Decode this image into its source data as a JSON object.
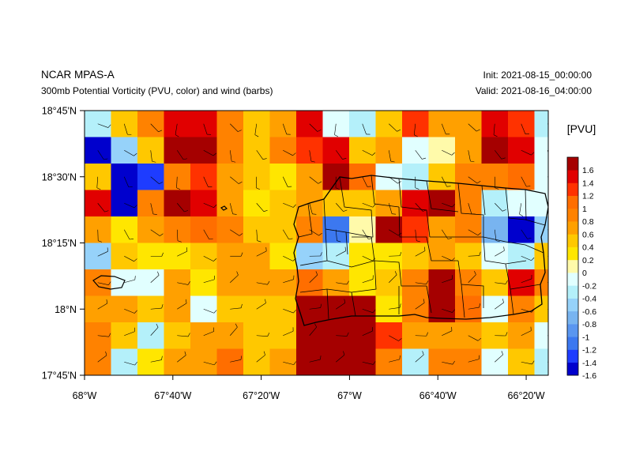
{
  "header": {
    "title": "NCAR MPAS-A",
    "subtitle": "300mb Potential Vorticity (PVU, color) and wind (barbs)",
    "init": "Init: 2021-08-15_00:00:00",
    "valid": "Valid: 2021-08-16_04:00:00"
  },
  "map": {
    "lon_range": [
      -68.0,
      -66.25
    ],
    "lat_range": [
      17.75,
      18.75
    ],
    "x_ticks": [
      {
        "lon": -68.0,
        "label": "68°W"
      },
      {
        "lon": -67.6667,
        "label": "67°40'W"
      },
      {
        "lon": -67.3333,
        "label": "67°20'W"
      },
      {
        "lon": -67.0,
        "label": "67°W"
      },
      {
        "lon": -66.6667,
        "label": "66°40'W"
      },
      {
        "lon": -66.3333,
        "label": "66°20'W"
      }
    ],
    "y_ticks": [
      {
        "lat": 18.75,
        "label": "18°45'N"
      },
      {
        "lat": 18.5,
        "label": "18°30'N"
      },
      {
        "lat": 18.25,
        "label": "18°15'N"
      },
      {
        "lat": 18.0,
        "label": "18°N"
      },
      {
        "lat": 17.75,
        "label": "17°45'N"
      }
    ],
    "pv_grid": [
      [
        -0.5,
        0.3,
        0.8,
        1.3,
        1.4,
        0.7,
        0.4,
        0.5,
        1.3,
        -0.2,
        -0.4,
        0.3,
        1.1,
        0.6,
        0.5,
        1.3,
        1.1,
        -0.5
      ],
      [
        -1.7,
        -0.6,
        0.3,
        1.7,
        1.5,
        0.8,
        0.3,
        0.7,
        1.1,
        1.3,
        0.4,
        0.5,
        -0.3,
        -0.1,
        0.5,
        1.5,
        1.4,
        -0.3
      ],
      [
        0.3,
        -1.7,
        -1.5,
        0.8,
        1.1,
        0.6,
        0.3,
        0.1,
        0.6,
        1.7,
        1.0,
        -0.2,
        -0.5,
        0.3,
        0.7,
        0.8,
        0.9,
        -0.3
      ],
      [
        1.3,
        -1.7,
        0.7,
        1.7,
        1.3,
        0.5,
        0.2,
        0.3,
        0.5,
        0.3,
        0.4,
        0.5,
        1.3,
        1.7,
        0.8,
        -0.5,
        -0.3,
        -0.3
      ],
      [
        0.6,
        0.2,
        0.6,
        0.8,
        0.9,
        0.7,
        0.3,
        0.4,
        0.8,
        -1.3,
        -0.1,
        1.5,
        1.1,
        0.6,
        0.7,
        -0.8,
        -1.7,
        -0.7
      ],
      [
        -0.6,
        0.4,
        0.2,
        0.2,
        0.3,
        0.6,
        0.6,
        0.2,
        -0.6,
        -0.4,
        0.1,
        0.2,
        0.3,
        0.6,
        0.3,
        -0.3,
        -0.5,
        0.3
      ],
      [
        0.7,
        -0.2,
        -0.3,
        0.5,
        0.2,
        0.5,
        0.5,
        0.5,
        0.9,
        0.6,
        0.2,
        0.4,
        0.7,
        1.7,
        0.7,
        0.4,
        1.4,
        0.7
      ],
      [
        0.6,
        0.5,
        0.4,
        0.5,
        -0.3,
        0.4,
        0.4,
        0.4,
        1.6,
        1.7,
        1.7,
        0.2,
        0.7,
        1.7,
        0.9,
        -0.3,
        0.8,
        0.3
      ],
      [
        0.7,
        0.3,
        -0.4,
        0.3,
        0.6,
        0.5,
        0.4,
        0.4,
        1.5,
        1.7,
        1.7,
        1.2,
        0.6,
        0.6,
        0.6,
        0.3,
        0.5,
        -0.2
      ],
      [
        0.7,
        -0.5,
        0.2,
        0.6,
        0.5,
        0.9,
        0.4,
        0.5,
        1.5,
        1.8,
        1.8,
        0.8,
        -0.5,
        0.7,
        0.7,
        -0.2,
        0.3,
        -0.4
      ],
      [
        0.6,
        0.5,
        -0.1,
        0.4,
        1.4,
        0.7,
        -0.1,
        0.5,
        0.7,
        1.8,
        1.8,
        0.6,
        1.3,
        0.7,
        -0.7,
        -0.7,
        -0.6,
        -0.5
      ]
    ]
  },
  "colorbar": {
    "title": "[PVU]",
    "colors": [
      "#0000cd",
      "#1e3cff",
      "#3c78f0",
      "#5a96f0",
      "#78b4f0",
      "#96d2fa",
      "#b4f0fa",
      "#e1ffff",
      "#fffaaa",
      "#ffe600",
      "#ffc800",
      "#ffa000",
      "#ff8200",
      "#ff6e00",
      "#ff3200",
      "#e10000",
      "#a50000"
    ],
    "labels": [
      "1.6",
      "1.4",
      "1.2",
      "1",
      "0.8",
      "0.6",
      "0.4",
      "0.2",
      "0",
      "-0.2",
      "-0.4",
      "-0.6",
      "-0.8",
      "-1",
      "-1.2",
      "-1.4",
      "-1.6"
    ]
  }
}
